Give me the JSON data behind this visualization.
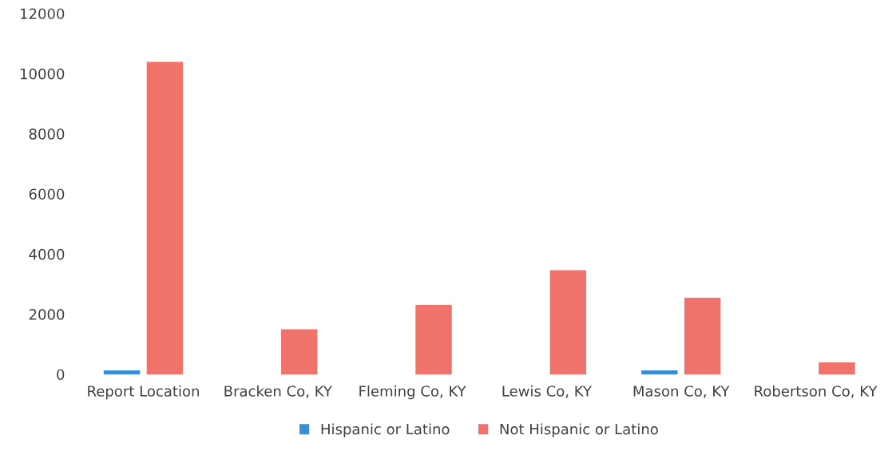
{
  "chart_data": {
    "type": "bar",
    "categories": [
      "Report Location",
      "Bracken Co, KY",
      "Fleming Co, KY",
      "Lewis Co, KY",
      "Mason Co, KY",
      "Robertson Co, KY"
    ],
    "series": [
      {
        "name": "Hispanic or Latino",
        "color": "#3a8ed8",
        "values": [
          130,
          0,
          0,
          0,
          130,
          0
        ]
      },
      {
        "name": "Not Hispanic or Latino",
        "color": "#f0736b",
        "values": [
          10390,
          1500,
          2310,
          3460,
          2550,
          400
        ]
      }
    ],
    "ylim": [
      0,
      12000
    ],
    "yticks": [
      0,
      2000,
      4000,
      6000,
      8000,
      10000,
      12000
    ],
    "grid": false,
    "legend": "bottom"
  }
}
